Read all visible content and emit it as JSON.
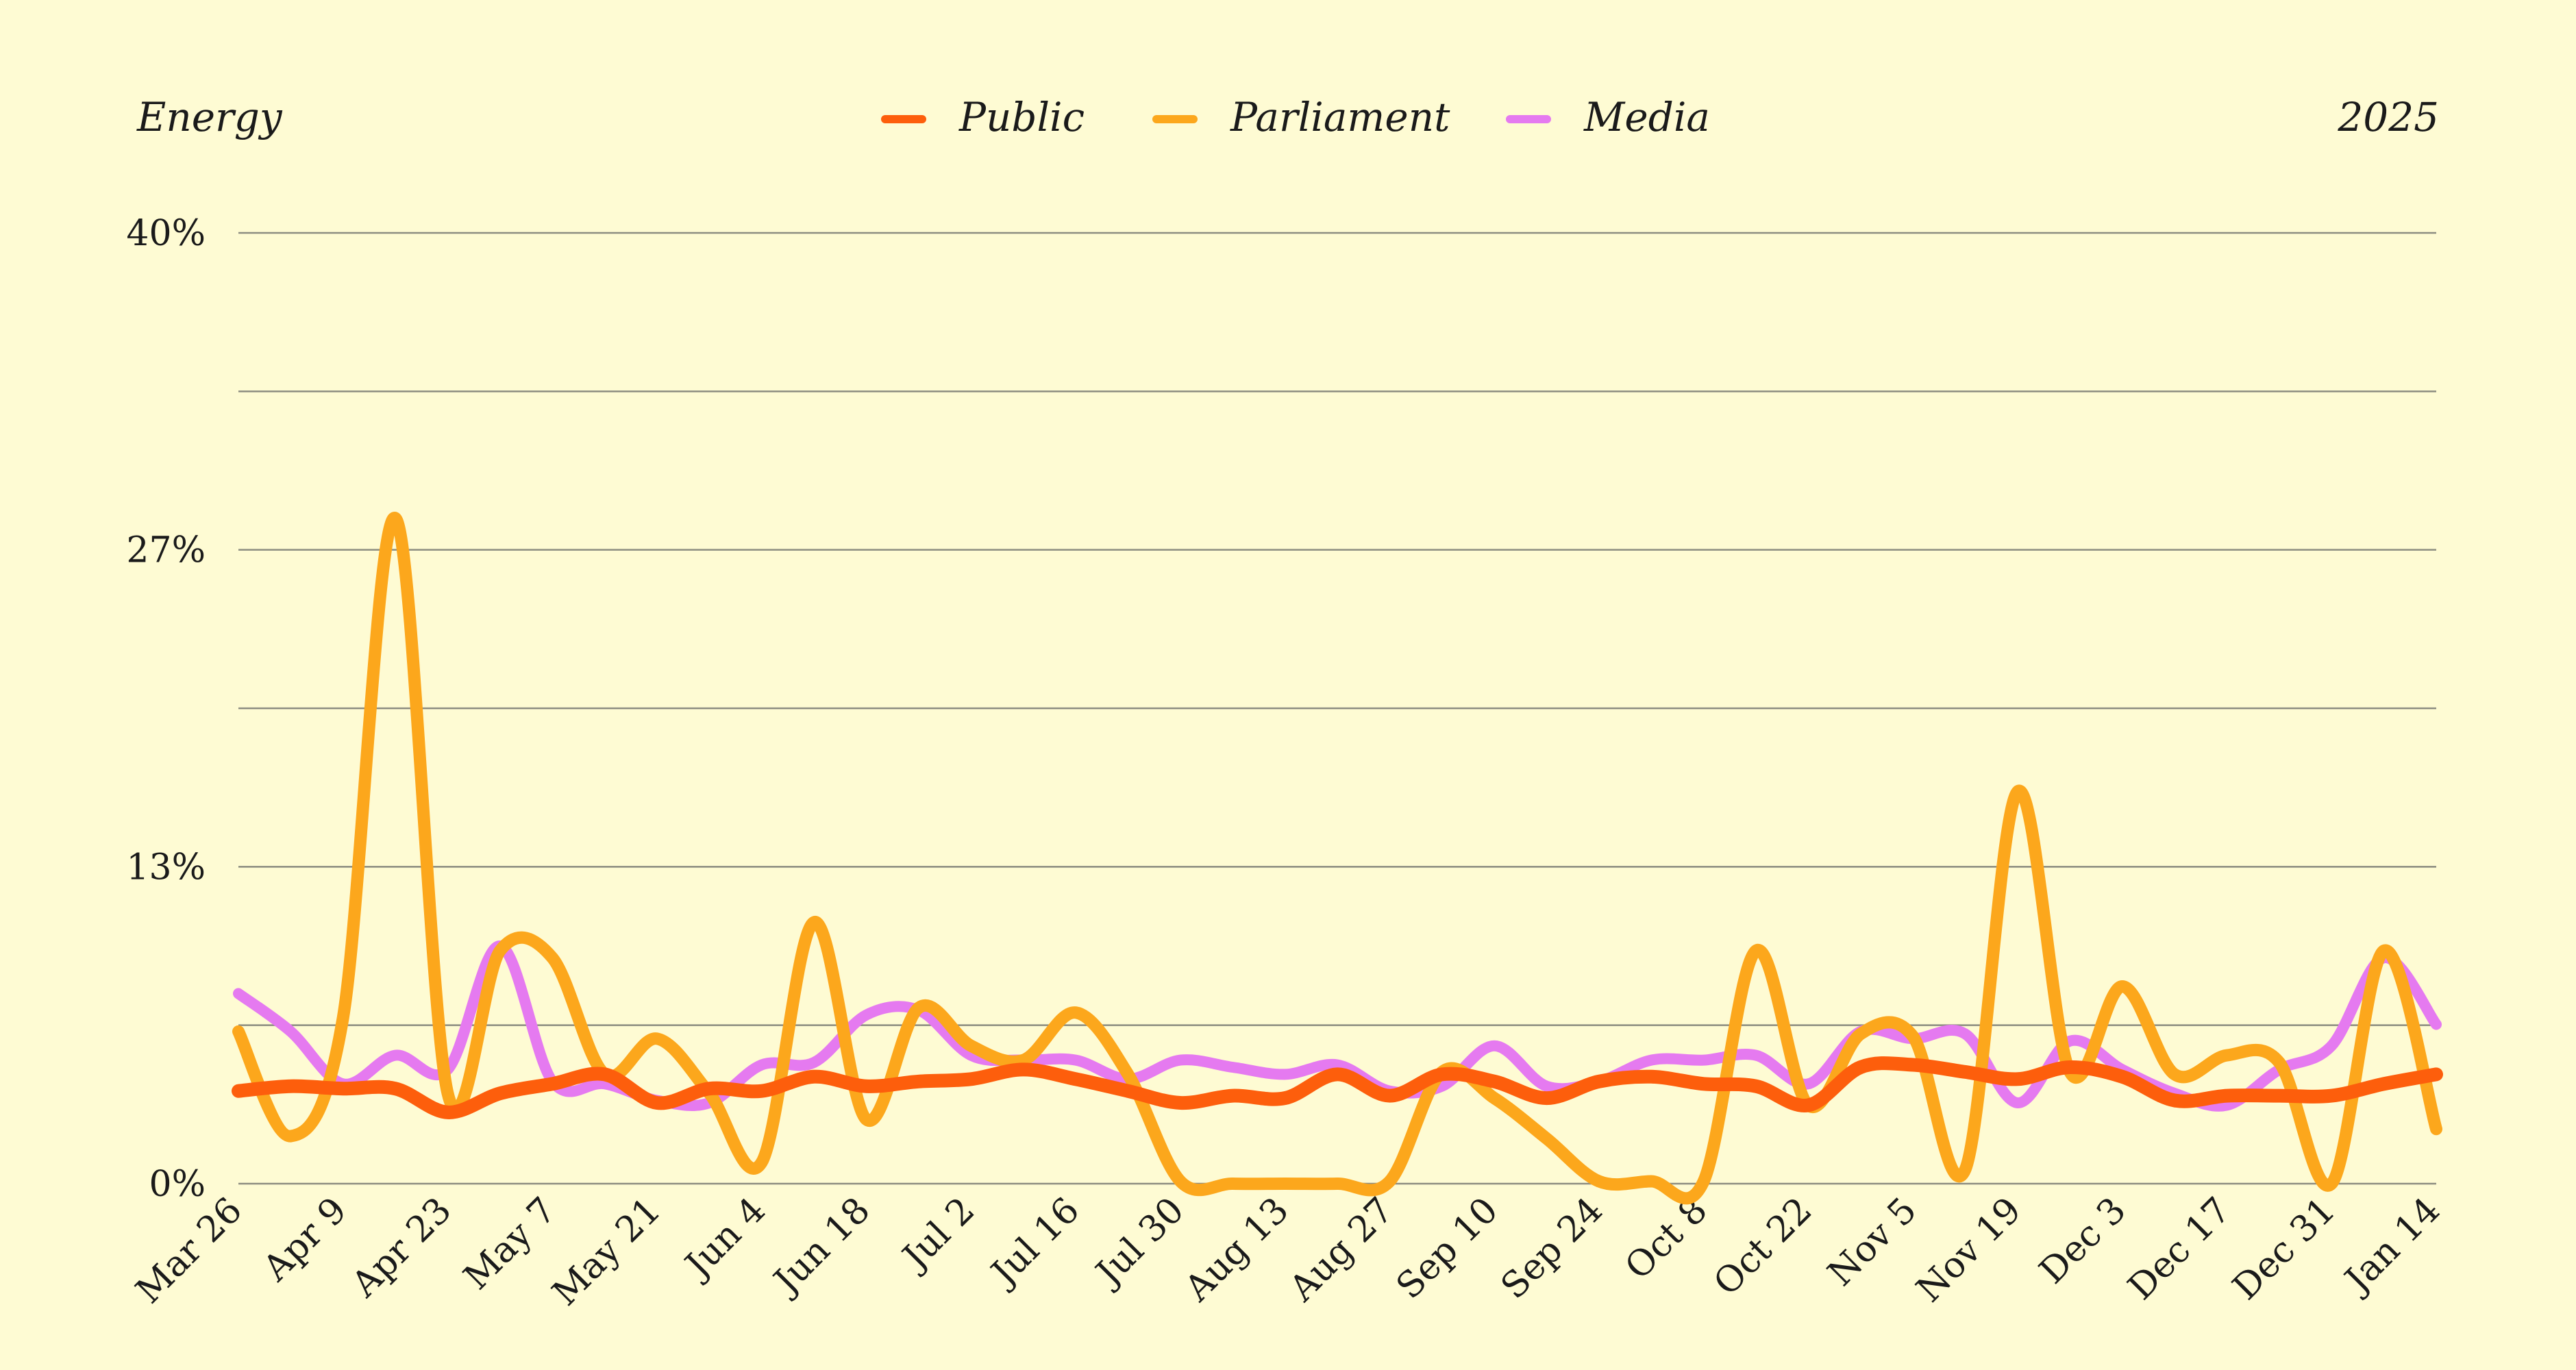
{
  "chart_data": {
    "type": "line",
    "title": "Energy",
    "period_label": "2025",
    "yticks": [
      "0%",
      "13%",
      "27%",
      "40%"
    ],
    "ylim": [
      0,
      40
    ],
    "grid": true,
    "legend_position": "top-center",
    "x": [
      "Mar 26",
      "Apr 2",
      "Apr 9",
      "Apr 16",
      "Apr 23",
      "Apr 30",
      "May 7",
      "May 14",
      "May 21",
      "May 28",
      "Jun 4",
      "Jun 11",
      "Jun 18",
      "Jun 25",
      "Jul 2",
      "Jul 9",
      "Jul 16",
      "Jul 23",
      "Jul 30",
      "Aug 6",
      "Aug 13",
      "Aug 20",
      "Aug 27",
      "Sep 3",
      "Sep 10",
      "Sep 17",
      "Sep 24",
      "Oct 1",
      "Oct 8",
      "Oct 15",
      "Oct 22",
      "Oct 29",
      "Nov 5",
      "Nov 12",
      "Nov 19",
      "Nov 26",
      "Dec 3",
      "Dec 10",
      "Dec 17",
      "Dec 24",
      "Dec 31",
      "Jan 7",
      "Jan 14"
    ],
    "xtick_labels": [
      "Mar 26",
      "Apr 9",
      "Apr 23",
      "May 7",
      "May 21",
      "Jun 4",
      "Jun 18",
      "Jul 2",
      "Jul 16",
      "Jul 30",
      "Aug 13",
      "Aug 27",
      "Sep 10",
      "Sep 24",
      "Oct 8",
      "Oct 22",
      "Nov 5",
      "Nov 19",
      "Dec 3",
      "Dec 17",
      "Dec 31",
      "Jan 14"
    ],
    "series": [
      {
        "name": "Media",
        "color": "#e57af0",
        "values": [
          8.0,
          6.4,
          4.2,
          5.4,
          4.8,
          10.0,
          4.3,
          4.2,
          3.5,
          3.4,
          5.0,
          5.1,
          7.1,
          7.3,
          5.4,
          5.2,
          5.2,
          4.4,
          5.2,
          4.9,
          4.6,
          5.0,
          3.9,
          4.1,
          5.8,
          4.1,
          4.3,
          5.2,
          5.2,
          5.4,
          4.2,
          6.4,
          6.1,
          6.3,
          3.4,
          6.0,
          4.8,
          3.8,
          3.3,
          4.8,
          5.8,
          9.5,
          6.7
        ]
      },
      {
        "name": "Parliament",
        "color": "#fca71c",
        "values": [
          6.4,
          2.0,
          7.0,
          28.0,
          3.8,
          9.8,
          9.5,
          4.6,
          6.1,
          3.8,
          0.9,
          11.0,
          2.7,
          7.4,
          5.8,
          5.2,
          7.2,
          4.6,
          0.1,
          0.0,
          0.0,
          0.0,
          0.1,
          4.7,
          3.6,
          1.9,
          0.1,
          0.1,
          0.1,
          9.8,
          3.3,
          6.3,
          6.2,
          0.6,
          16.5,
          4.7,
          8.3,
          4.6,
          5.4,
          5.1,
          0.0,
          9.8,
          2.3
        ]
      },
      {
        "name": "Public",
        "color": "#fd5e0c",
        "values": [
          3.9,
          4.1,
          4.0,
          4.0,
          3.0,
          3.8,
          4.2,
          4.6,
          3.4,
          4.0,
          3.9,
          4.5,
          4.1,
          4.3,
          4.4,
          4.8,
          4.4,
          3.9,
          3.4,
          3.7,
          3.6,
          4.6,
          3.7,
          4.6,
          4.3,
          3.6,
          4.3,
          4.5,
          4.2,
          4.1,
          3.3,
          4.9,
          5.0,
          4.7,
          4.4,
          4.9,
          4.5,
          3.5,
          3.7,
          3.7,
          3.7,
          4.2,
          4.6
        ]
      }
    ],
    "legend_order": [
      "Public",
      "Parliament",
      "Media"
    ]
  }
}
